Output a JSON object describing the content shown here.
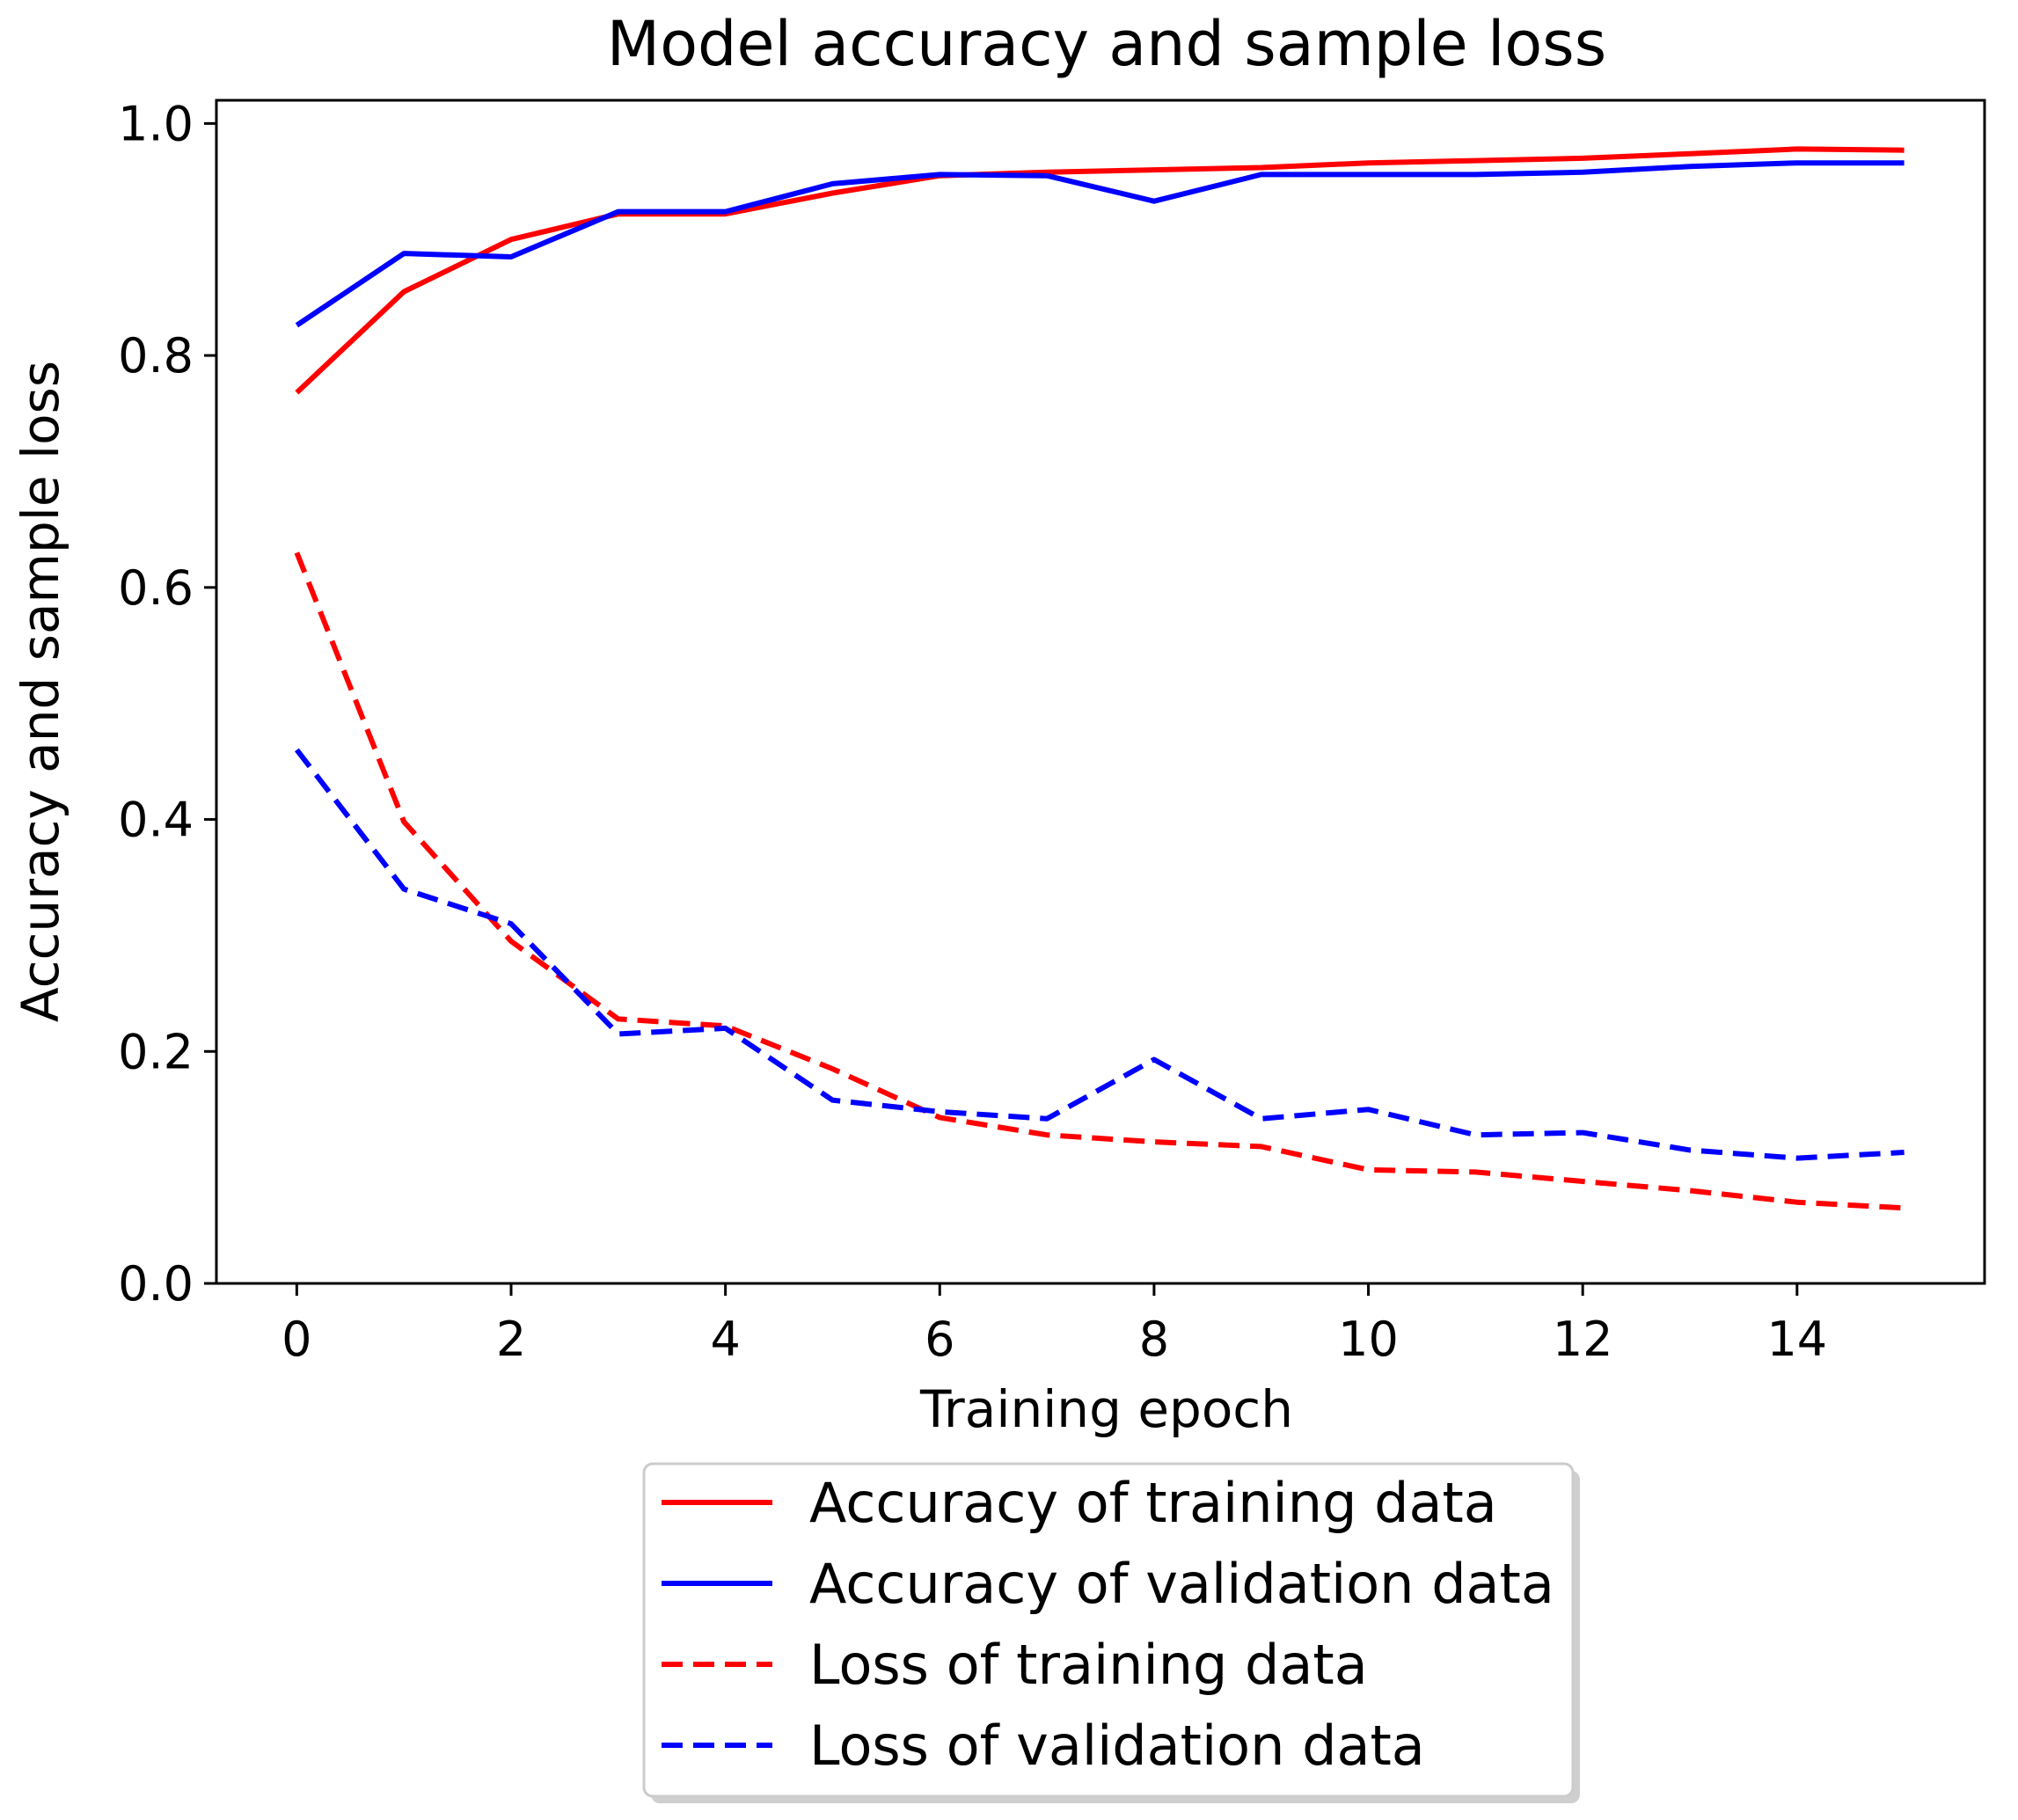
{
  "chart_data": {
    "type": "line",
    "title": "Model accuracy and sample loss",
    "xlabel": "Training epoch",
    "ylabel": "Accuracy and sample loss",
    "xlim": [
      -0.75,
      15.75
    ],
    "ylim": [
      0.0,
      1.02
    ],
    "xticks": [
      0,
      2,
      4,
      6,
      8,
      10,
      12,
      14
    ],
    "xtick_labels": [
      "0",
      "2",
      "4",
      "6",
      "8",
      "10",
      "12",
      "14"
    ],
    "yticks": [
      0.0,
      0.2,
      0.4,
      0.6,
      0.8,
      1.0
    ],
    "ytick_labels": [
      "0.0",
      "0.2",
      "0.4",
      "0.6",
      "0.8",
      "1.0"
    ],
    "grid": false,
    "legend_position": "below-center",
    "x": [
      0,
      1,
      2,
      3,
      4,
      5,
      6,
      7,
      8,
      9,
      10,
      11,
      12,
      13,
      14,
      15
    ],
    "series": [
      {
        "name": "Accuracy of training data",
        "color": "#ff0000",
        "style": "solid",
        "values": [
          0.768,
          0.855,
          0.9,
          0.922,
          0.922,
          0.94,
          0.955,
          0.958,
          0.96,
          0.962,
          0.966,
          0.968,
          0.97,
          0.974,
          0.978,
          0.977
        ]
      },
      {
        "name": "Accuracy of validation data",
        "color": "#0000ff",
        "style": "solid",
        "values": [
          0.826,
          0.888,
          0.885,
          0.924,
          0.924,
          0.948,
          0.956,
          0.955,
          0.933,
          0.956,
          0.956,
          0.956,
          0.958,
          0.963,
          0.966,
          0.966
        ]
      },
      {
        "name": "Loss of training data",
        "color": "#ff0000",
        "style": "dashed",
        "values": [
          0.63,
          0.398,
          0.295,
          0.228,
          0.222,
          0.185,
          0.143,
          0.128,
          0.122,
          0.118,
          0.098,
          0.096,
          0.088,
          0.08,
          0.07,
          0.065
        ]
      },
      {
        "name": "Loss of validation data",
        "color": "#0000ff",
        "style": "dashed",
        "values": [
          0.46,
          0.34,
          0.31,
          0.215,
          0.22,
          0.158,
          0.148,
          0.142,
          0.193,
          0.142,
          0.15,
          0.128,
          0.13,
          0.115,
          0.108,
          0.113
        ]
      }
    ]
  }
}
